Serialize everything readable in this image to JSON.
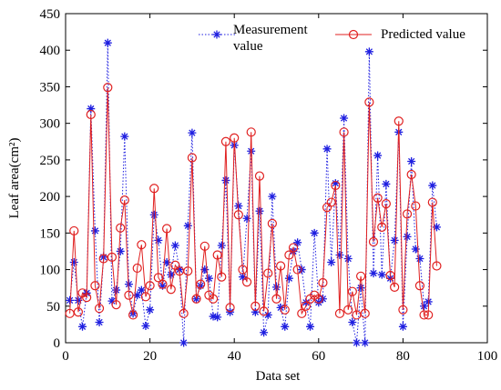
{
  "chart_data": {
    "type": "line",
    "xlabel": "Data set",
    "ylabel": "Leaf area(cm²)",
    "x": [
      1,
      2,
      3,
      4,
      5,
      6,
      7,
      8,
      9,
      10,
      11,
      12,
      13,
      14,
      15,
      16,
      17,
      18,
      19,
      20,
      21,
      22,
      23,
      24,
      25,
      26,
      27,
      28,
      29,
      30,
      31,
      32,
      33,
      34,
      35,
      36,
      37,
      38,
      39,
      40,
      41,
      42,
      43,
      44,
      45,
      46,
      47,
      48,
      49,
      50,
      51,
      52,
      53,
      54,
      55,
      56,
      57,
      58,
      59,
      60,
      61,
      62,
      63,
      64,
      65,
      66,
      67,
      68,
      69,
      70,
      71,
      72,
      73,
      74,
      75,
      76,
      77,
      78,
      79,
      80,
      81,
      82,
      83,
      84,
      85,
      86,
      87,
      88
    ],
    "series": [
      {
        "name": "Measurement value",
        "color": "#1f1fe0",
        "marker": "star",
        "linestyle": "dotted",
        "values": [
          58,
          110,
          58,
          22,
          68,
          320,
          153,
          28,
          117,
          410,
          57,
          72,
          125,
          282,
          80,
          40,
          65,
          72,
          23,
          45,
          175,
          140,
          78,
          110,
          93,
          133,
          100,
          0,
          160,
          287,
          60,
          78,
          100,
          88,
          36,
          35,
          133,
          222,
          42,
          270,
          187,
          90,
          170,
          262,
          42,
          180,
          14,
          38,
          200,
          76,
          48,
          22,
          88,
          125,
          137,
          100,
          55,
          22,
          150,
          55,
          60,
          265,
          110,
          218,
          120,
          307,
          115,
          28,
          0,
          75,
          0,
          398,
          95,
          256,
          93,
          217,
          88,
          140,
          288,
          22,
          145,
          248,
          128,
          115,
          50,
          56,
          215,
          158
        ]
      },
      {
        "name": "Predicted value",
        "color": "#e02020",
        "marker": "circle",
        "linestyle": "solid",
        "values": [
          40,
          153,
          42,
          68,
          62,
          312,
          78,
          47,
          115,
          349,
          117,
          52,
          157,
          195,
          65,
          38,
          102,
          134,
          63,
          78,
          211,
          89,
          80,
          156,
          73,
          106,
          98,
          40,
          98,
          253,
          60,
          80,
          132,
          65,
          60,
          120,
          90,
          275,
          48,
          280,
          175,
          100,
          83,
          288,
          50,
          228,
          43,
          95,
          163,
          60,
          105,
          45,
          120,
          130,
          100,
          40,
          50,
          60,
          65,
          60,
          82,
          185,
          192,
          215,
          40,
          288,
          45,
          70,
          38,
          91,
          40,
          329,
          138,
          198,
          158,
          190,
          92,
          76,
          303,
          45,
          176,
          230,
          187,
          78,
          38,
          38,
          192,
          105
        ]
      }
    ],
    "xlim": [
      0,
      100
    ],
    "xticks": [
      0,
      20,
      40,
      60,
      80,
      100
    ],
    "ylim": [
      0,
      450
    ],
    "yticks": [
      0,
      50,
      100,
      150,
      200,
      250,
      300,
      350,
      400,
      450
    ]
  }
}
